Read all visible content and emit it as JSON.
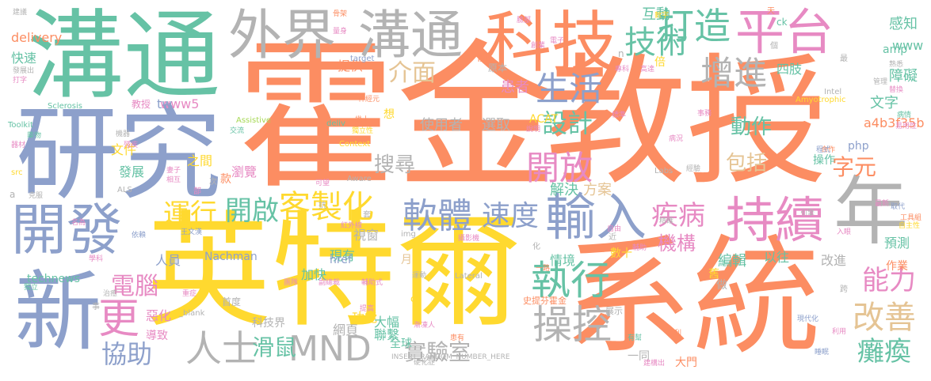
{
  "palette": {
    "orange": "#fc8d62",
    "green": "#66c2a5",
    "blue": "#8da0cb",
    "yellow": "#ffd92f",
    "pink": "#e78ac3",
    "gray": "#b3b3b3",
    "lime": "#a6d854",
    "tan": "#e5c494"
  },
  "words": [
    {
      "text": "霍金",
      "color": "orange"
    },
    {
      "text": "教授",
      "color": "orange"
    },
    {
      "text": "英特爾",
      "color": "yellow"
    },
    {
      "text": "系統",
      "color": "orange"
    },
    {
      "text": "溝通",
      "color": "green"
    },
    {
      "text": "研究",
      "color": "blue"
    },
    {
      "text": "科技",
      "color": "orange"
    },
    {
      "text": "溝通",
      "color": "gray"
    },
    {
      "text": "外界",
      "color": "gray"
    },
    {
      "text": "開發",
      "color": "blue"
    },
    {
      "text": "新",
      "color": "blue"
    },
    {
      "text": "持續",
      "color": "pink"
    },
    {
      "text": "輸入",
      "color": "blue"
    },
    {
      "text": "平台",
      "color": "pink"
    },
    {
      "text": "打造",
      "color": "green"
    },
    {
      "text": "年",
      "color": "gray"
    },
    {
      "text": "技術",
      "color": "green"
    },
    {
      "text": "客製化",
      "color": "yellow"
    },
    {
      "text": "軟體",
      "color": "blue"
    },
    {
      "text": "執行",
      "color": "green"
    },
    {
      "text": "操控",
      "color": "gray"
    },
    {
      "text": "MND",
      "color": "gray"
    },
    {
      "text": "人士",
      "color": "gray"
    },
    {
      "text": "生活",
      "color": "blue"
    },
    {
      "text": "增進",
      "color": "gray"
    },
    {
      "text": "開放",
      "color": "pink"
    },
    {
      "text": "設計",
      "color": "green"
    },
    {
      "text": "疾病",
      "color": "pink"
    },
    {
      "text": "速度",
      "color": "blue"
    },
    {
      "text": "開啟",
      "color": "green"
    },
    {
      "text": "運行",
      "color": "yellow"
    },
    {
      "text": "能力",
      "color": "pink"
    },
    {
      "text": "改善",
      "color": "tan"
    },
    {
      "text": "癱瘓",
      "color": "green"
    },
    {
      "text": "滑鼠",
      "color": "green"
    },
    {
      "text": "實驗室",
      "color": "gray"
    },
    {
      "text": "協助",
      "color": "blue"
    },
    {
      "text": "電腦",
      "color": "pink"
    },
    {
      "text": "更",
      "color": "pink"
    },
    {
      "text": "介面",
      "color": "tan"
    },
    {
      "text": "搜尋",
      "color": "gray"
    },
    {
      "text": "動作",
      "color": "green"
    },
    {
      "text": "包括",
      "color": "tan"
    },
    {
      "text": "字元",
      "color": "orange"
    },
    {
      "text": "機構",
      "color": "pink"
    },
    {
      "text": "編輯",
      "color": "green"
    },
    {
      "text": "提供",
      "color": "orange"
    },
    {
      "text": "互動",
      "color": "green"
    },
    {
      "text": "四肢",
      "color": "green"
    },
    {
      "text": "感知",
      "color": "green"
    },
    {
      "text": "障礙",
      "color": "green"
    },
    {
      "text": "文字",
      "color": "green"
    },
    {
      "text": "快速",
      "color": "green"
    },
    {
      "text": "delivery",
      "color": "orange"
    },
    {
      "text": "患者",
      "color": "pink"
    },
    {
      "text": "使用者",
      "color": "gray"
    },
    {
      "text": "選取",
      "color": "gray"
    },
    {
      "text": "解決",
      "color": "green"
    },
    {
      "text": "方案",
      "color": "tan"
    },
    {
      "text": "www5",
      "color": "pink"
    },
    {
      "text": "tw",
      "color": "blue"
    },
    {
      "text": "a4b3f35b",
      "color": "orange"
    },
    {
      "text": "www",
      "color": "green"
    },
    {
      "text": "amp",
      "color": "green"
    },
    {
      "text": "文件",
      "color": "yellow"
    },
    {
      "text": "發展",
      "color": "green"
    },
    {
      "text": "之間",
      "color": "yellow"
    },
    {
      "text": "瀏覽",
      "color": "pink"
    },
    {
      "text": "操作",
      "color": "green"
    },
    {
      "text": "預測",
      "color": "green"
    },
    {
      "text": "Nachman",
      "color": "blue"
    },
    {
      "text": "視窗",
      "color": "gray"
    },
    {
      "text": "現有",
      "color": "green"
    },
    {
      "text": "加快",
      "color": "green"
    },
    {
      "text": "人員",
      "color": "blue"
    },
    {
      "text": "情境",
      "color": "green"
    },
    {
      "text": "數十",
      "color": "yellow"
    },
    {
      "text": "以往",
      "color": "green"
    },
    {
      "text": "改進",
      "color": "gray"
    },
    {
      "text": "作業",
      "color": "orange"
    },
    {
      "text": "technews",
      "color": "green"
    },
    {
      "text": "功能",
      "color": "yellow"
    },
    {
      "text": "大幅",
      "color": "green"
    },
    {
      "text": "聯繫",
      "color": "green"
    },
    {
      "text": "網頁",
      "color": "gray"
    },
    {
      "text": "科技界",
      "color": "gray"
    },
    {
      "text": "惡化",
      "color": "pink"
    },
    {
      "text": "導致",
      "color": "pink"
    },
    {
      "text": "全球",
      "color": "green"
    },
    {
      "text": "大門",
      "color": "orange"
    },
    {
      "text": "一同",
      "color": "gray"
    },
    {
      "text": "舊",
      "color": "yellow"
    },
    {
      "text": "做",
      "color": "gray"
    },
    {
      "text": "款",
      "color": "orange"
    },
    {
      "text": "php",
      "color": "blue"
    },
    {
      "text": "ACAT",
      "color": "yellow"
    },
    {
      "text": "倍",
      "color": "yellow"
    },
    {
      "text": "想",
      "color": "yellow"
    },
    {
      "text": "href",
      "color": "blue"
    },
    {
      "text": "月",
      "color": "tan"
    },
    {
      "text": "cb",
      "color": "yellow"
    },
    {
      "text": "首度",
      "color": "gray"
    },
    {
      "text": "INSERT_RANDOM_NUMBER_HERE",
      "color": "gray"
    },
    {
      "text": "前",
      "color": "orange"
    },
    {
      "text": "原本",
      "color": "gray"
    },
    {
      "text": "Intel",
      "color": "gray"
    },
    {
      "text": "Amyotrophic",
      "color": "yellow"
    },
    {
      "text": "Sclerosis",
      "color": "green"
    },
    {
      "text": "Toolkit",
      "color": "green"
    },
    {
      "text": "Assistive",
      "color": "lime"
    },
    {
      "text": "Context",
      "color": "yellow"
    },
    {
      "text": "Aware",
      "color": "gray"
    },
    {
      "text": "ALS",
      "color": "gray"
    },
    {
      "text": "Labs",
      "color": "gray"
    },
    {
      "text": "Lateral",
      "color": "gray"
    },
    {
      "text": "target",
      "color": "blue"
    },
    {
      "text": "_blank",
      "color": "gray"
    },
    {
      "text": "deliv",
      "color": "green"
    },
    {
      "text": "src",
      "color": "yellow"
    },
    {
      "text": "img",
      "color": "gray"
    },
    {
      "text": "教授",
      "color": "pink"
    },
    {
      "text": "ck",
      "color": "green"
    },
    {
      "text": "建議",
      "color": "gray"
    },
    {
      "text": "發展出",
      "color": "gray"
    },
    {
      "text": "打字",
      "color": "pink"
    },
    {
      "text": "藥物",
      "color": "green"
    },
    {
      "text": "器材",
      "color": "pink"
    },
    {
      "text": "工具組",
      "color": "orange"
    },
    {
      "text": "自主性",
      "color": "yellow"
    },
    {
      "text": "取代",
      "color": "blue"
    },
    {
      "text": "易用性",
      "color": "pink"
    },
    {
      "text": "病情",
      "color": "green"
    },
    {
      "text": "史提芬霍金",
      "color": "orange"
    },
    {
      "text": "展示",
      "color": "gray"
    },
    {
      "text": "提高",
      "color": "pink"
    },
    {
      "text": "重症",
      "color": "pink"
    },
    {
      "text": "專利",
      "color": "orange"
    },
    {
      "text": "現代化",
      "color": "blue"
    },
    {
      "text": "利用",
      "color": "pink"
    },
    {
      "text": "團隊",
      "color": "pink"
    },
    {
      "text": "副總裁",
      "color": "pink"
    },
    {
      "text": "輔助式",
      "color": "pink"
    },
    {
      "text": "漸凍人",
      "color": "pink"
    },
    {
      "text": "建構出",
      "color": "pink"
    },
    {
      "text": "獨立性",
      "color": "yellow"
    },
    {
      "text": "神經元",
      "color": "orange"
    },
    {
      "text": "幾十",
      "color": "orange"
    },
    {
      "text": "創業",
      "color": "pink"
    },
    {
      "text": "電子",
      "color": "pink"
    },
    {
      "text": "骨架",
      "color": "orange"
    },
    {
      "text": "量身",
      "color": "pink"
    },
    {
      "text": "管理",
      "color": "gray"
    },
    {
      "text": "替換",
      "color": "pink"
    },
    {
      "text": "熟悉",
      "color": "gray"
    },
    {
      "text": "事務",
      "color": "pink"
    },
    {
      "text": "合作",
      "color": "orange"
    },
    {
      "text": "精確",
      "color": "gray"
    },
    {
      "text": "引擎",
      "color": "gray"
    },
    {
      "text": "數字",
      "color": "yellow"
    },
    {
      "text": "運動",
      "color": "gray"
    },
    {
      "text": "患有",
      "color": "orange"
    },
    {
      "text": "硬化症",
      "color": "gray"
    },
    {
      "text": "自由",
      "color": "pink"
    },
    {
      "text": "程式",
      "color": "blue"
    },
    {
      "text": "王文漢",
      "color": "blue"
    },
    {
      "text": "依賴",
      "color": "blue"
    },
    {
      "text": "名為",
      "color": "pink"
    },
    {
      "text": "克服",
      "color": "gray"
    },
    {
      "text": "獨立",
      "color": "green"
    },
    {
      "text": "學科",
      "color": "pink"
    },
    {
      "text": "治癒",
      "color": "gray"
    },
    {
      "text": "睡眠",
      "color": "blue"
    },
    {
      "text": "機器",
      "color": "gray"
    },
    {
      "text": "交流",
      "color": "green"
    },
    {
      "text": "殘疾",
      "color": "pink"
    },
    {
      "text": "妻子",
      "color": "pink"
    },
    {
      "text": "相互",
      "color": "pink"
    },
    {
      "text": "可望",
      "color": "pink"
    },
    {
      "text": "病況",
      "color": "pink"
    },
    {
      "text": "經驗",
      "color": "gray"
    },
    {
      "text": "有幫",
      "color": "green"
    },
    {
      "text": "一路",
      "color": "orange"
    },
    {
      "text": "入眼",
      "color": "pink"
    },
    {
      "text": "輔助",
      "color": "pink"
    },
    {
      "text": "高達",
      "color": "pink"
    },
    {
      "text": "專科",
      "color": "pink"
    },
    {
      "text": "標準",
      "color": "pink"
    },
    {
      "text": "說明",
      "color": "pink"
    },
    {
      "text": "a",
      "color": "gray"
    },
    {
      "text": "n",
      "color": "gray"
    },
    {
      "text": "近",
      "color": "gray"
    },
    {
      "text": "跨",
      "color": "gray"
    },
    {
      "text": "套",
      "color": "gray"
    },
    {
      "text": "抗",
      "color": "gray"
    },
    {
      "text": "事",
      "color": "gray"
    },
    {
      "text": "部",
      "color": "pink"
    },
    {
      "text": "次",
      "color": "gray"
    },
    {
      "text": "天",
      "color": "orange"
    },
    {
      "text": "個",
      "color": "gray"
    },
    {
      "text": "化",
      "color": "gray"
    },
    {
      "text": "最",
      "color": "gray"
    },
    {
      "text": "最新",
      "color": "pink"
    },
    {
      "text": "臉部",
      "color": "pink"
    },
    {
      "text": "紅外線",
      "color": "pink"
    },
    {
      "text": "攝影機",
      "color": "pink"
    }
  ]
}
